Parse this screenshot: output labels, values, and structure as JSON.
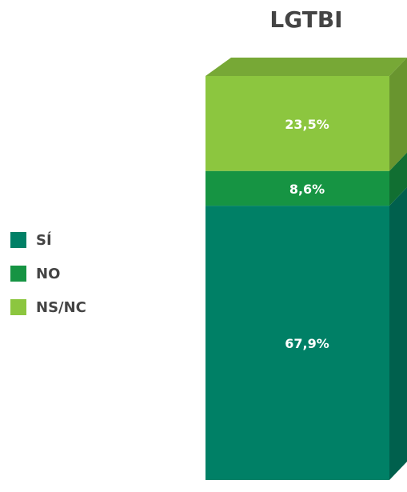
{
  "chart_data": {
    "type": "stacked-bar",
    "categories": [
      "LGTBI"
    ],
    "series": [
      {
        "name": "SÍ",
        "color": "#008066",
        "values": [
          67.9
        ],
        "value_labels": [
          "67,9%"
        ]
      },
      {
        "name": "NO",
        "color": "#169443",
        "values": [
          8.6
        ],
        "value_labels": [
          "8,6%"
        ]
      },
      {
        "name": "NS/NC",
        "color": "#8cc63f",
        "values": [
          23.5
        ],
        "value_labels": [
          "23,5%"
        ]
      }
    ]
  }
}
